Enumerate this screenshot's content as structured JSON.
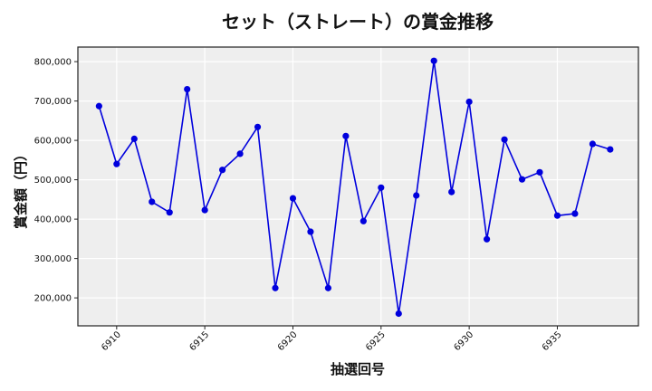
{
  "chart_data": {
    "type": "line",
    "title": "セット（ストレート）の賞金推移",
    "xlabel": "抽選回号",
    "ylabel": "賞金額（円）",
    "x": [
      6909,
      6910,
      6911,
      6912,
      6913,
      6914,
      6915,
      6916,
      6917,
      6918,
      6919,
      6920,
      6921,
      6922,
      6923,
      6924,
      6925,
      6926,
      6927,
      6928,
      6929,
      6930,
      6931,
      6932,
      6933,
      6934,
      6935,
      6936,
      6937,
      6938
    ],
    "series": [
      {
        "name": "賞金額",
        "color": "#0000dd",
        "marker": "circle",
        "values": [
          687000,
          540000,
          604000,
          444000,
          417000,
          730000,
          423000,
          525000,
          566000,
          634000,
          225000,
          453000,
          368000,
          225000,
          611000,
          395000,
          480000,
          160000,
          460000,
          802000,
          469000,
          698000,
          349000,
          602000,
          501000,
          519000,
          409000,
          414000,
          591000,
          577000
        ]
      }
    ],
    "xticks": [
      6910,
      6915,
      6920,
      6925,
      6930,
      6935
    ],
    "xtick_labels": [
      "6910",
      "6915",
      "6920",
      "6925",
      "6930",
      "6935"
    ],
    "yticks": [
      200000,
      300000,
      400000,
      500000,
      600000,
      700000,
      800000
    ],
    "ytick_labels": [
      "200,000",
      "300,000",
      "400,000",
      "500,000",
      "600,000",
      "700,000",
      "800,000"
    ],
    "xlim": [
      6907.8,
      6939.6
    ],
    "ylim": [
      129000,
      837000
    ],
    "grid": true,
    "legend": null,
    "background": "#eeeeee"
  }
}
